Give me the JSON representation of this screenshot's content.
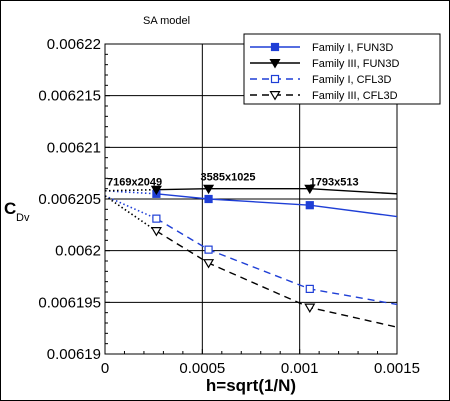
{
  "chart_data": {
    "type": "line",
    "subtitle": "SA model",
    "xlabel": "h=sqrt(1/N)",
    "ylabel": "C",
    "ylabel_sub": "Dv",
    "xlim": [
      0,
      0.0015
    ],
    "ylim": [
      0.00619,
      0.00622
    ],
    "xticks": [
      0,
      0.0005,
      0.001,
      0.0015
    ],
    "xtick_labels": [
      "0",
      "0.0005",
      "0.001",
      "0.0015"
    ],
    "yticks": [
      0.00619,
      0.006195,
      0.0062,
      0.006205,
      0.00621,
      0.006215,
      0.00622
    ],
    "ytick_labels": [
      "0.00619",
      "0.006195",
      "0.0062",
      "0.006205",
      "0.00621",
      "0.006215",
      "0.00622"
    ],
    "grid": true,
    "legend_position": "top-right",
    "series": [
      {
        "name": "Family I, FUN3D",
        "color": "#1f3fd6",
        "dash": "solid",
        "marker": "square-filled",
        "x": [
          0.000264,
          0.000532,
          0.001052
        ],
        "y": [
          0.0062055,
          0.006205,
          0.0062044
        ],
        "extrapolation": {
          "x": [
            0,
            0.000264
          ],
          "y": [
            0.0062058,
            0.0062055
          ]
        },
        "tail": {
          "x": [
            0.001052,
            0.0015
          ],
          "y": [
            0.0062044,
            0.0062033
          ]
        }
      },
      {
        "name": "Family III, FUN3D",
        "color": "#000000",
        "dash": "solid",
        "marker": "triangle-down-filled",
        "x": [
          0.000264,
          0.000532,
          0.001052
        ],
        "y": [
          0.0062059,
          0.006206,
          0.006206
        ],
        "extrapolation": {
          "x": [
            0,
            0.000264
          ],
          "y": [
            0.0062058,
            0.0062059
          ]
        },
        "tail": {
          "x": [
            0.001052,
            0.0015
          ],
          "y": [
            0.006206,
            0.0062055
          ]
        }
      },
      {
        "name": "Family I, CFL3D",
        "color": "#1f3fd6",
        "dash": "dashed",
        "marker": "square-open",
        "x": [
          0.000264,
          0.000532,
          0.001052
        ],
        "y": [
          0.0062031,
          0.0062001,
          0.0061963
        ],
        "extrapolation": {
          "x": [
            0,
            0.000264
          ],
          "y": [
            0.0062053,
            0.0062031
          ]
        },
        "tail": {
          "x": [
            0.001052,
            0.0015
          ],
          "y": [
            0.0061963,
            0.0061948
          ]
        }
      },
      {
        "name": "Family III, CFL3D",
        "color": "#000000",
        "dash": "dashed",
        "marker": "triangle-down-open",
        "x": [
          0.000264,
          0.000532,
          0.001052
        ],
        "y": [
          0.0062019,
          0.0061988,
          0.0061945
        ],
        "extrapolation": {
          "x": [
            0,
            0.000264
          ],
          "y": [
            0.0062053,
            0.0062019
          ]
        },
        "tail": {
          "x": [
            0.001052,
            0.0015
          ],
          "y": [
            0.0061945,
            0.0061926
          ]
        }
      }
    ],
    "annotations": [
      {
        "text": "7169x2049",
        "x": 0.000152,
        "y": 0.0062063
      },
      {
        "text": "3585x1025",
        "x": 0.000632,
        "y": 0.0062068
      },
      {
        "text": "1793x513",
        "x": 0.001177,
        "y": 0.0062063
      }
    ]
  }
}
